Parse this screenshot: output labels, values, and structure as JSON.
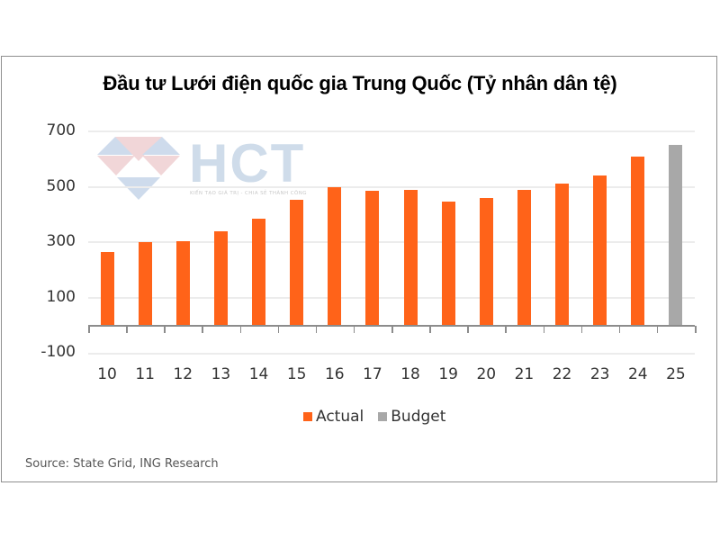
{
  "chart_data": {
    "type": "bar",
    "title": "Đầu tư Lưới điện quốc gia Trung Quốc (Tỷ nhân dân tệ)",
    "xlabel": "",
    "ylabel": "",
    "categories": [
      "10",
      "11",
      "12",
      "13",
      "14",
      "15",
      "16",
      "17",
      "18",
      "19",
      "20",
      "21",
      "22",
      "23",
      "24",
      "25"
    ],
    "series": [
      {
        "name": "Actual",
        "color": "#FF6319",
        "values": [
          265,
          300,
          305,
          340,
          385,
          453,
          498,
          485,
          489,
          447,
          460,
          489,
          511,
          540,
          611,
          null
        ]
      },
      {
        "name": "Budget",
        "color": "#A8A8A8",
        "values": [
          null,
          null,
          null,
          null,
          null,
          null,
          null,
          null,
          null,
          null,
          null,
          null,
          null,
          null,
          null,
          650
        ]
      }
    ],
    "yticks": [
      "700",
      "500",
      "300",
      "100",
      "-100"
    ],
    "ylim": [
      -100,
      700
    ],
    "grid": true,
    "legend_position": "bottom",
    "source": "Source: State Grid, ING Research"
  },
  "watermark": {
    "brand": "HCT",
    "tagline": "KIẾN TẠO GIÁ TRỊ - CHIA SẺ THÀNH CÔNG"
  }
}
